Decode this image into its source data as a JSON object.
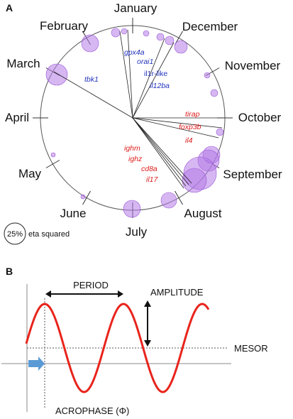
{
  "panel_a": {
    "label": "A",
    "months": [
      {
        "name": "January",
        "angle": 0
      },
      {
        "name": "February",
        "angle": -30
      },
      {
        "name": "March",
        "angle": -60
      },
      {
        "name": "April",
        "angle": -90
      },
      {
        "name": "May",
        "angle": -120
      },
      {
        "name": "June",
        "angle": -150
      },
      {
        "name": "July",
        "angle": 180
      },
      {
        "name": "August",
        "angle": 150
      },
      {
        "name": "September",
        "angle": 120
      },
      {
        "name": "October",
        "angle": 90
      },
      {
        "name": "November",
        "angle": 60
      },
      {
        "name": "December",
        "angle": 30
      }
    ],
    "genes_blue": [
      "gpx4a",
      "orai1",
      "il1r-like",
      "il12ba",
      "tbk1"
    ],
    "genes_red": [
      "tirap",
      "foxp3b",
      "il4",
      "ighm",
      "ighz",
      "cd8a",
      "il17"
    ],
    "legend_circle_label": "25%",
    "legend_text": "eta squared",
    "colors": {
      "bubble": "#b57be8",
      "bubble_stroke": "#9b55d6",
      "blue_text": "#2233bb",
      "red_text": "#dd1c1c"
    }
  },
  "panel_b": {
    "label": "B",
    "period_label": "PERIOD",
    "amplitude_label": "AMPLITUDE",
    "mesor_label": "MESOR",
    "acrophase_label": "ACROPHASE (Φ)",
    "colors": {
      "wave": "#e8241c",
      "arrow": "#5b9bd5"
    }
  }
}
